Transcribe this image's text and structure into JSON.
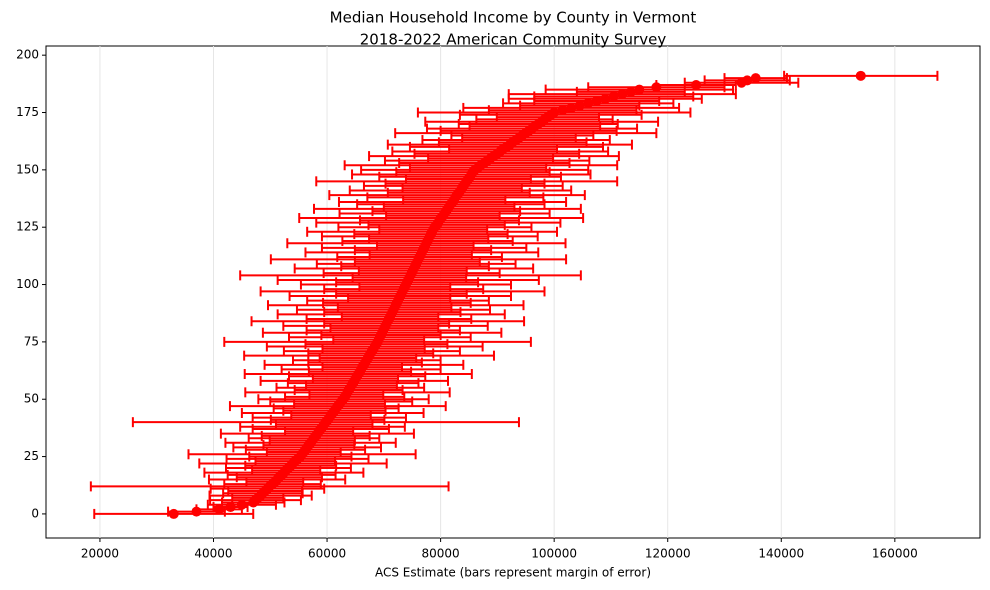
{
  "chart_data": {
    "type": "errorbar",
    "title": "Median Household Income by County in Vermont",
    "subtitle": "2018-2022 American Community Survey",
    "x_label": "ACS Estimate (bars represent margin of error)",
    "color": "#ff0000",
    "grid": "x",
    "xlim": [
      10500,
      175000
    ],
    "ylim": [
      -10.5,
      204
    ],
    "xticks": [
      20000,
      40000,
      60000,
      80000,
      100000,
      120000,
      140000,
      160000
    ],
    "yticks": [
      0,
      25,
      50,
      75,
      100,
      125,
      150,
      175,
      200
    ],
    "y": [
      0,
      1,
      2,
      3,
      4,
      5,
      6,
      7,
      8,
      9,
      10,
      11,
      12,
      13,
      14,
      15,
      16,
      17,
      18,
      19,
      20,
      21,
      22,
      23,
      24,
      25,
      26,
      27,
      28,
      29,
      30,
      31,
      32,
      33,
      34,
      35,
      36,
      37,
      38,
      39,
      40,
      41,
      42,
      43,
      44,
      45,
      46,
      47,
      48,
      49,
      50,
      51,
      52,
      53,
      54,
      55,
      56,
      57,
      58,
      59,
      60,
      61,
      62,
      63,
      64,
      65,
      66,
      67,
      68,
      69,
      70,
      71,
      72,
      73,
      74,
      75,
      76,
      77,
      78,
      79,
      80,
      81,
      82,
      83,
      84,
      85,
      86,
      87,
      88,
      89,
      90,
      91,
      92,
      93,
      94,
      95,
      96,
      97,
      98,
      99,
      100,
      101,
      102,
      103,
      104,
      105,
      106,
      107,
      108,
      109,
      110,
      111,
      112,
      113,
      114,
      115,
      116,
      117,
      118,
      119,
      120,
      121,
      122,
      123,
      124,
      125,
      126,
      127,
      128,
      129,
      130,
      131,
      132,
      133,
      134,
      135,
      136,
      137,
      138,
      139,
      140,
      141,
      142,
      143,
      144,
      145,
      146,
      147,
      148,
      149,
      150,
      151,
      152,
      153,
      154,
      155,
      156,
      157,
      158,
      159,
      160,
      161,
      162,
      163,
      164,
      165,
      166,
      167,
      168,
      169,
      170,
      171,
      172,
      173,
      174,
      175,
      176,
      177,
      178,
      179,
      180,
      181,
      182,
      183,
      184,
      185,
      186,
      187,
      188,
      189,
      190,
      191
    ],
    "x": [
      33000,
      37000,
      41000,
      43000,
      45000,
      47000,
      47400,
      47800,
      48300,
      48700,
      49100,
      49500,
      49900,
      50400,
      50800,
      51200,
      51600,
      52000,
      52400,
      52800,
      53200,
      53600,
      54000,
      54400,
      54800,
      55300,
      55600,
      55900,
      56200,
      56500,
      56800,
      57100,
      57400,
      57700,
      58000,
      58300,
      58600,
      58900,
      59200,
      59500,
      59800,
      60100,
      60400,
      60700,
      61000,
      61300,
      61600,
      61900,
      62200,
      62500,
      62900,
      63100,
      63400,
      63600,
      63800,
      64100,
      64300,
      64600,
      64800,
      65000,
      65300,
      65500,
      65800,
      66000,
      66200,
      66500,
      66700,
      67000,
      67200,
      67400,
      67700,
      67900,
      68200,
      68400,
      68700,
      68900,
      69100,
      69300,
      69500,
      69700,
      69900,
      70100,
      70300,
      70500,
      70700,
      70900,
      71100,
      71300,
      71500,
      71700,
      71900,
      72100,
      72300,
      72500,
      72700,
      72900,
      73100,
      73300,
      73500,
      73700,
      73900,
      74100,
      74300,
      74500,
      74700,
      74900,
      75100,
      75300,
      75500,
      75700,
      75900,
      76100,
      76300,
      76500,
      76700,
      76900,
      77100,
      77300,
      77500,
      77700,
      77900,
      78100,
      78300,
      78500,
      78700,
      79000,
      79300,
      79600,
      79800,
      80100,
      80400,
      80700,
      81000,
      81200,
      81500,
      81800,
      82100,
      82400,
      82600,
      82900,
      83200,
      83500,
      83800,
      84000,
      84300,
      84600,
      84900,
      85200,
      85400,
      85700,
      86000,
      86600,
      87100,
      87700,
      88200,
      88800,
      89400,
      89900,
      90500,
      91000,
      91600,
      92200,
      92700,
      93300,
      93800,
      94400,
      95000,
      95500,
      96100,
      96600,
      97200,
      97800,
      98300,
      98900,
      99400,
      100000,
      101500,
      103000,
      104500,
      106000,
      107500,
      109000,
      110500,
      112000,
      113500,
      115000,
      118000,
      125000,
      133000,
      134000,
      135500,
      154000
    ],
    "xerr": [
      14000,
      5000,
      4000,
      3000,
      6000,
      5500,
      8000,
      4500,
      9000,
      7000,
      6500,
      10000,
      31500,
      8500,
      5000,
      12000,
      7500,
      9500,
      14000,
      6000,
      11000,
      8000,
      16500,
      7000,
      12500,
      9000,
      20000,
      6500,
      10500,
      13000,
      8000,
      15000,
      7500,
      11500,
      9500,
      17000,
      6000,
      12000,
      14500,
      8500,
      34000,
      10000,
      13500,
      7000,
      16000,
      9000,
      11000,
      19000,
      8000,
      12500,
      15000,
      10500,
      6500,
      18000,
      9500,
      13000,
      8000,
      11500,
      16500,
      7500,
      12000,
      20000,
      9000,
      14000,
      7000,
      17500,
      10000,
      13000,
      8500,
      22000,
      11000,
      15500,
      9000,
      19000,
      12500,
      27000,
      8000,
      16000,
      10500,
      21000,
      13500,
      9500,
      18000,
      11000,
      24000,
      14500,
      8500,
      20000,
      12000,
      17000,
      10000,
      22500,
      13000,
      16000,
      9000,
      19500,
      11500,
      25000,
      14000,
      8000,
      18500,
      12500,
      23000,
      10000,
      30000,
      15500,
      9500,
      21000,
      13000,
      17500,
      11000,
      26000,
      14500,
      9000,
      20500,
      12000,
      18000,
      8500,
      24500,
      15000,
      10500,
      19000,
      13500,
      22000,
      9500,
      17000,
      12000,
      21500,
      14000,
      25000,
      10000,
      18500,
      13000,
      23500,
      11500,
      16500,
      20000,
      9000,
      15500,
      22500,
      12500,
      19500,
      10500,
      17500,
      14000,
      26500,
      11000,
      16000,
      21000,
      13500,
      20000,
      12000,
      24000,
      15000,
      18000,
      11000,
      22000,
      14500,
      19000,
      9500,
      17000,
      21500,
      13000,
      16500,
      10000,
      12500,
      23000,
      15500,
      18500,
      11500,
      14000,
      20500,
      12000,
      9000,
      16000,
      24000,
      13000,
      19000,
      10500,
      15000,
      11000,
      17000,
      14000,
      20000,
      9500,
      16500,
      12000,
      7000,
      10000,
      7500,
      5500,
      13500
    ]
  }
}
